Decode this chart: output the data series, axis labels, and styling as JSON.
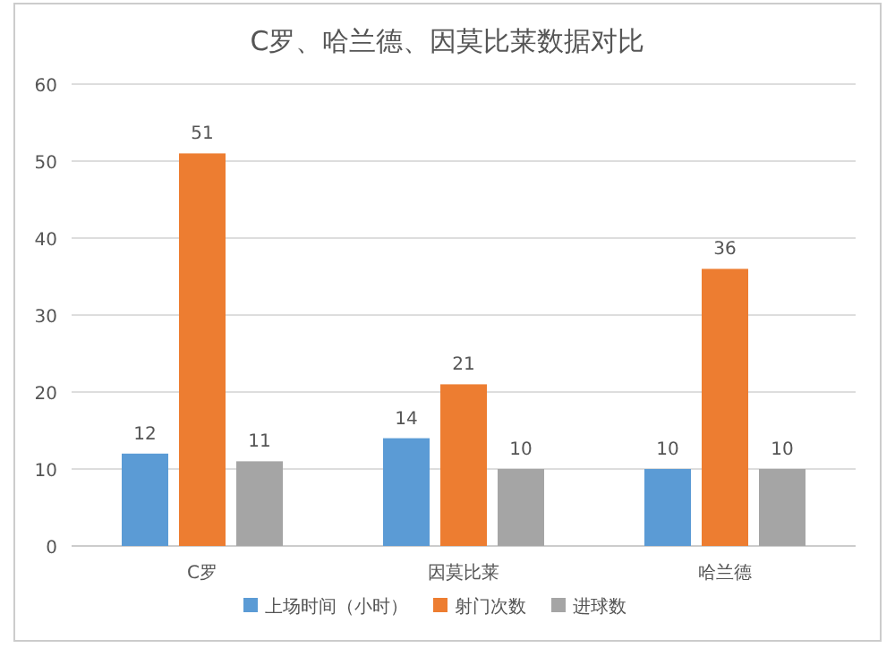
{
  "chart_data": {
    "type": "bar",
    "title": "C罗、哈兰德、因莫比莱数据对比",
    "categories": [
      "C罗",
      "因莫比莱",
      "哈兰德"
    ],
    "series": [
      {
        "name": "上场时间（小时）",
        "color": "#5b9bd5",
        "values": [
          12,
          14,
          10
        ]
      },
      {
        "name": "射门次数",
        "color": "#ed7d31",
        "values": [
          51,
          21,
          36
        ]
      },
      {
        "name": "进球数",
        "color": "#a5a5a5",
        "values": [
          11,
          10,
          10
        ]
      }
    ],
    "ylim": [
      0,
      60
    ],
    "yticks": [
      0,
      10,
      20,
      30,
      40,
      50,
      60
    ],
    "grid": "y",
    "legend": "bottom",
    "data_labels": true
  }
}
